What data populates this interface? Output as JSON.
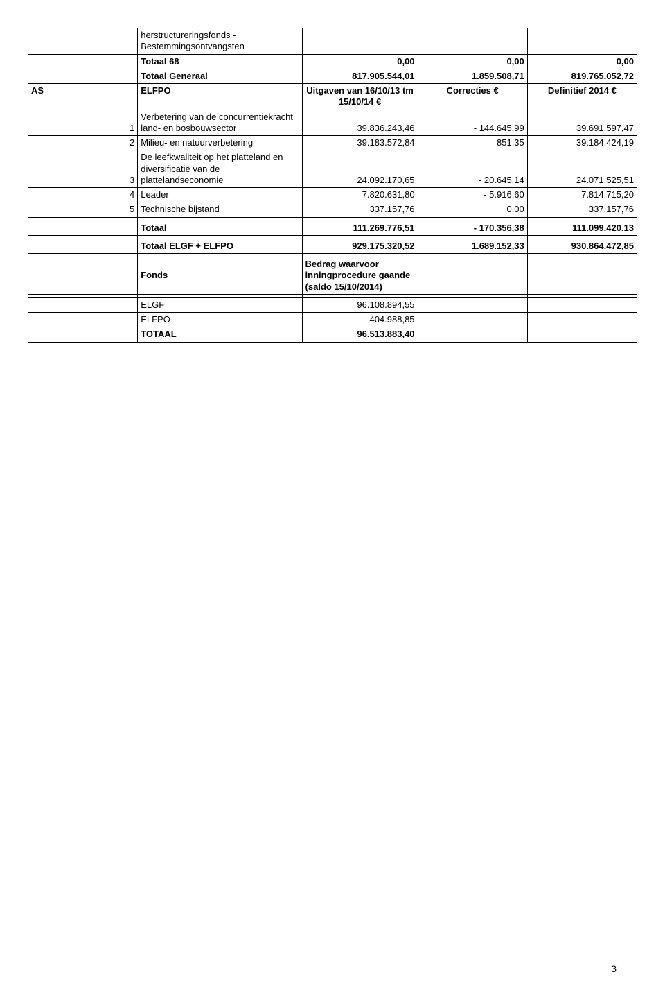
{
  "table": {
    "colWidths": [
      "18%",
      "27%",
      "19%",
      "18%",
      "18%"
    ],
    "rows": [
      {
        "c": [
          {
            "t": "",
            "cls": "col0"
          },
          {
            "t": "herstructureringsfonds - Bestemmingsontvangsten",
            "cls": "col1 lft"
          },
          {
            "t": "",
            "cls": "col2"
          },
          {
            "t": "",
            "cls": "col3"
          },
          {
            "t": "",
            "cls": "col4"
          }
        ]
      },
      {
        "c": [
          {
            "t": "",
            "cls": "col0"
          },
          {
            "t": "Totaal 68",
            "cls": "col1 lft bold"
          },
          {
            "t": "0,00",
            "cls": "col2 num bold"
          },
          {
            "t": "0,00",
            "cls": "col3 num bold"
          },
          {
            "t": "0,00",
            "cls": "col4 num bold"
          }
        ]
      },
      {
        "c": [
          {
            "t": "",
            "cls": "col0"
          },
          {
            "t": "Totaal Generaal",
            "cls": "col1 lft bold"
          },
          {
            "t": "817.905.544,01",
            "cls": "col2 num bold"
          },
          {
            "t": "1.859.508,71",
            "cls": "col3 num bold"
          },
          {
            "t": "819.765.052,72",
            "cls": "col4 num bold"
          }
        ]
      },
      {
        "c": [
          {
            "t": "AS",
            "cls": "col0 lft bold"
          },
          {
            "t": "ELFPO",
            "cls": "col1 lft bold"
          },
          {
            "t": "Uitgaven van 16/10/13 tm 15/10/14 €",
            "cls": "col2 ctr bold"
          },
          {
            "t": "Correcties €",
            "cls": "col3 ctr bold"
          },
          {
            "t": "Definitief 2014 €",
            "cls": "col4 ctr bold"
          }
        ]
      },
      {
        "c": [
          {
            "t": "1",
            "cls": "col0 idcell"
          },
          {
            "t": "Verbetering van de concurrentiekracht land- en bosbouwsector",
            "cls": "col1 lft"
          },
          {
            "t": "39.836.243,46",
            "cls": "col2 num btm"
          },
          {
            "t": "- 144.645,99",
            "cls": "col3 num btm"
          },
          {
            "t": "39.691.597,47",
            "cls": "col4 num btm"
          }
        ]
      },
      {
        "c": [
          {
            "t": "2",
            "cls": "col0 idcell"
          },
          {
            "t": "Milieu- en natuurverbetering",
            "cls": "col1 lft"
          },
          {
            "t": "39.183.572,84",
            "cls": "col2 num btm"
          },
          {
            "t": "851,35",
            "cls": "col3 num btm"
          },
          {
            "t": "39.184.424,19",
            "cls": "col4 num btm"
          }
        ]
      },
      {
        "c": [
          {
            "t": "3",
            "cls": "col0 idcell"
          },
          {
            "t": "De leefkwaliteit op het platteland en diversificatie van de plattelandseconomie",
            "cls": "col1 lft"
          },
          {
            "t": "24.092.170,65",
            "cls": "col2 num btm"
          },
          {
            "t": "- 20.645,14",
            "cls": "col3 num btm"
          },
          {
            "t": "24.071.525,51",
            "cls": "col4 num btm"
          }
        ]
      },
      {
        "c": [
          {
            "t": "4",
            "cls": "col0 idcell"
          },
          {
            "t": "Leader",
            "cls": "col1 lft"
          },
          {
            "t": "7.820.631,80",
            "cls": "col2 num"
          },
          {
            "t": "- 5.916,60",
            "cls": "col3 num"
          },
          {
            "t": "7.814.715,20",
            "cls": "col4 num"
          }
        ]
      },
      {
        "c": [
          {
            "t": "5",
            "cls": "col0 idcell"
          },
          {
            "t": "Technische bijstand",
            "cls": "col1 lft"
          },
          {
            "t": "337.157,76",
            "cls": "col2 num"
          },
          {
            "t": "0,00",
            "cls": "col3 num"
          },
          {
            "t": "337.157,76",
            "cls": "col4 num"
          }
        ]
      },
      {
        "c": [
          {
            "t": "",
            "cls": "col0"
          },
          {
            "t": "",
            "cls": "col1"
          },
          {
            "t": "",
            "cls": "col2"
          },
          {
            "t": "",
            "cls": "col3"
          },
          {
            "t": "",
            "cls": "col4"
          }
        ]
      },
      {
        "c": [
          {
            "t": "",
            "cls": "col0"
          },
          {
            "t": "Totaal",
            "cls": "col1 lft bold"
          },
          {
            "t": "111.269.776,51",
            "cls": "col2 num bold"
          },
          {
            "t": "- 170.356,38",
            "cls": "col3 num bold"
          },
          {
            "t": "111.099.420.13",
            "cls": "col4 num bold"
          }
        ]
      },
      {
        "c": [
          {
            "t": "",
            "cls": "col0"
          },
          {
            "t": "",
            "cls": "col1"
          },
          {
            "t": "",
            "cls": "col2"
          },
          {
            "t": "",
            "cls": "col3"
          },
          {
            "t": "",
            "cls": "col4"
          }
        ]
      },
      {
        "c": [
          {
            "t": "",
            "cls": "col0"
          },
          {
            "t": "Totaal ELGF + ELFPO",
            "cls": "col1 lft bold"
          },
          {
            "t": "929.175.320,52",
            "cls": "col2 num bold"
          },
          {
            "t": "1.689.152,33",
            "cls": "col3 num bold"
          },
          {
            "t": "930.864.472,85",
            "cls": "col4 num bold"
          }
        ]
      },
      {
        "c": [
          {
            "t": "",
            "cls": "col0"
          },
          {
            "t": "",
            "cls": "col1"
          },
          {
            "t": "",
            "cls": "col2"
          },
          {
            "t": "",
            "cls": "col3"
          },
          {
            "t": "",
            "cls": "col4"
          }
        ]
      },
      {
        "c": [
          {
            "t": "",
            "cls": "col0"
          },
          {
            "t": "Fonds",
            "cls": "col1 lft bold",
            "vcenter": true
          },
          {
            "t": "Bedrag waarvoor inningprocedure gaande (saldo 15/10/2014)",
            "cls": "col2 lft bold"
          },
          {
            "t": "",
            "cls": "col3"
          },
          {
            "t": "",
            "cls": "col4"
          }
        ]
      },
      {
        "c": [
          {
            "t": "",
            "cls": "col0"
          },
          {
            "t": "",
            "cls": "col1"
          },
          {
            "t": "",
            "cls": "col2"
          },
          {
            "t": "",
            "cls": "col3"
          },
          {
            "t": "",
            "cls": "col4"
          }
        ]
      },
      {
        "c": [
          {
            "t": "",
            "cls": "col0"
          },
          {
            "t": "ELGF",
            "cls": "col1 lft"
          },
          {
            "t": "96.108.894,55",
            "cls": "col2 num"
          },
          {
            "t": "",
            "cls": "col3"
          },
          {
            "t": "",
            "cls": "col4"
          }
        ]
      },
      {
        "c": [
          {
            "t": "",
            "cls": "col0"
          },
          {
            "t": "ELFPO",
            "cls": "col1 lft"
          },
          {
            "t": "404.988,85",
            "cls": "col2 num"
          },
          {
            "t": "",
            "cls": "col3"
          },
          {
            "t": "",
            "cls": "col4"
          }
        ]
      },
      {
        "c": [
          {
            "t": "",
            "cls": "col0"
          },
          {
            "t": "TOTAAL",
            "cls": "col1 lft bold"
          },
          {
            "t": "96.513.883,40",
            "cls": "col2 num bold"
          },
          {
            "t": "",
            "cls": "col3"
          },
          {
            "t": "",
            "cls": "col4"
          }
        ]
      }
    ]
  },
  "pageNumber": "3",
  "style": {
    "fontFamily": "Arial, Helvetica, sans-serif",
    "fontSizePx": 13,
    "textColor": "#000000",
    "backgroundColor": "#ffffff",
    "borderColor": "#000000",
    "pageWidthPx": 960,
    "pageHeightPx": 1445
  }
}
